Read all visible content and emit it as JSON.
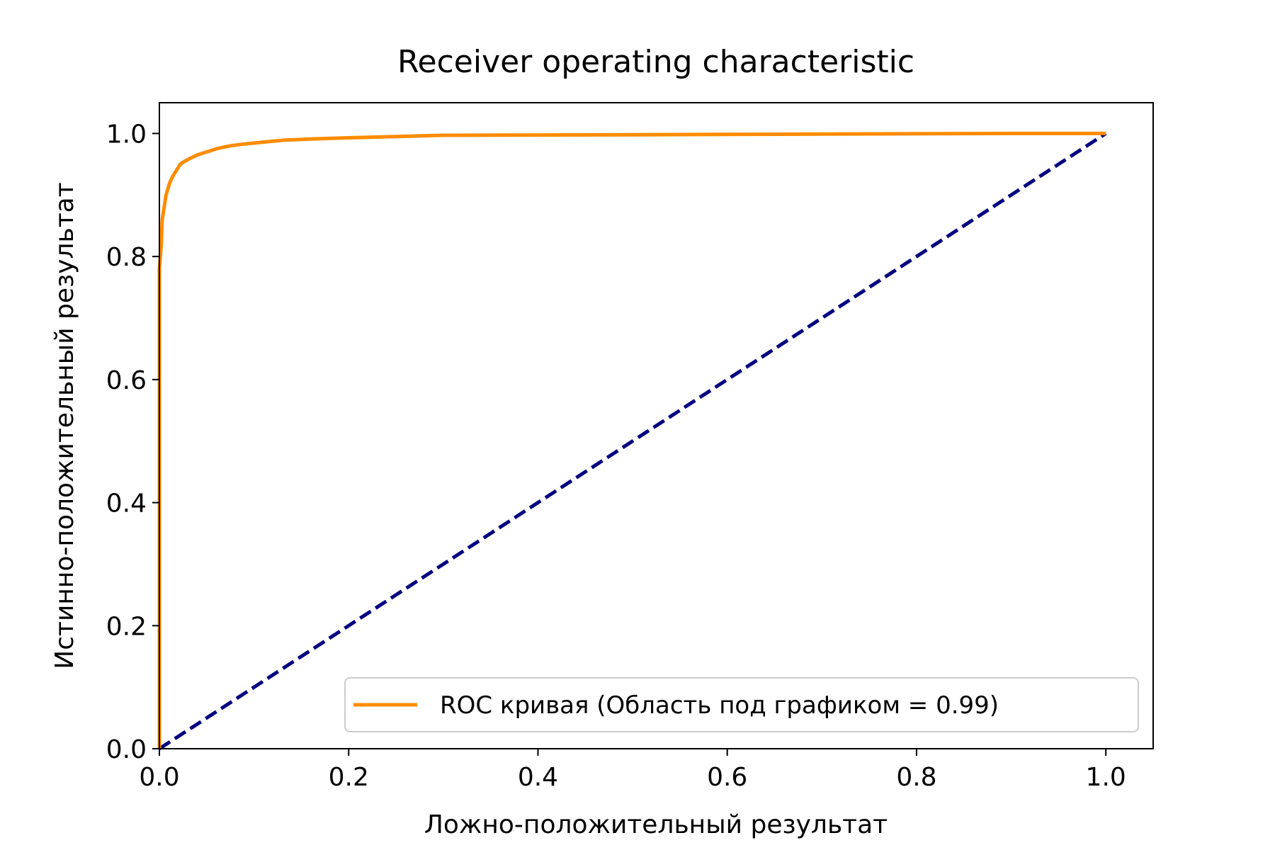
{
  "chart_data": {
    "type": "line",
    "title": "Receiver operating characteristic",
    "xlabel": "Ложно-положительный результат",
    "ylabel": "Истинно-положительный результат",
    "xlim": [
      0.0,
      1.05
    ],
    "ylim": [
      0.0,
      1.05
    ],
    "xticks": [
      "0.0",
      "0.2",
      "0.4",
      "0.6",
      "0.8",
      "1.0"
    ],
    "yticks": [
      "0.0",
      "0.2",
      "0.4",
      "0.6",
      "0.8",
      "1.0"
    ],
    "grid": false,
    "legend_position": "lower-right",
    "series": [
      {
        "name": "ROC кривая (Область под графиком = 0.99)",
        "color": "#ff8c00",
        "style": "solid",
        "x": [
          0.0,
          0.0,
          0.002,
          0.003,
          0.005,
          0.007,
          0.009,
          0.011,
          0.014,
          0.018,
          0.022,
          0.027,
          0.033,
          0.04,
          0.05,
          0.06,
          0.075,
          0.09,
          0.11,
          0.13,
          0.16,
          0.2,
          0.25,
          0.3,
          0.5,
          0.7,
          0.9,
          1.0
        ],
        "y": [
          0.0,
          0.78,
          0.82,
          0.86,
          0.88,
          0.9,
          0.91,
          0.92,
          0.93,
          0.94,
          0.95,
          0.955,
          0.96,
          0.965,
          0.97,
          0.975,
          0.98,
          0.983,
          0.986,
          0.989,
          0.991,
          0.993,
          0.995,
          0.997,
          0.998,
          0.999,
          1.0,
          1.0
        ]
      },
      {
        "name": "",
        "color": "#000080",
        "style": "dashed",
        "x": [
          0.0,
          1.0
        ],
        "y": [
          0.0,
          1.0
        ]
      }
    ]
  }
}
